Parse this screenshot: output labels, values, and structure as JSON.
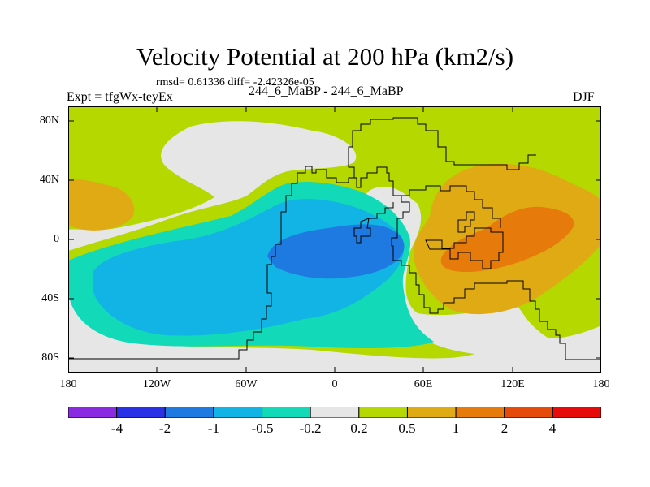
{
  "title": "Velocity Potential at 200 hPa (km2/s)",
  "stats_line": "rmsd= 0.61336 diff= -2.42326e-05",
  "experiment": "Expt = tfgWx-teyEx",
  "cases": "244_6_MaBP - 244_6_MaBP",
  "season": "DJF",
  "lat_labels": [
    "80N",
    "40N",
    "0",
    "40S",
    "80S"
  ],
  "lon_labels": [
    "180",
    "120W",
    "60W",
    "0",
    "60E",
    "120E",
    "180"
  ],
  "colorbar": {
    "colors": [
      "#8a2be2",
      "#2a30e6",
      "#1e7ae0",
      "#12b4e6",
      "#12d9b8",
      "#e6e6e6",
      "#b4d800",
      "#e0aa14",
      "#e67a0a",
      "#e64a0a",
      "#e60a0a"
    ],
    "levels": [
      "-4",
      "-2",
      "-1",
      "-0.5",
      "-0.2",
      "0.2",
      "0.5",
      "1",
      "2",
      "4"
    ]
  },
  "field_colors": {
    "positive_weak": "#b4d800",
    "neutral": "#e6e6e6",
    "negative_weak": "#12d9b8",
    "negative_mid": "#12b4e6",
    "negative_strong": "#1e7ae0",
    "positive_mid": "#e0aa14",
    "positive_strong": "#e67a0a"
  }
}
